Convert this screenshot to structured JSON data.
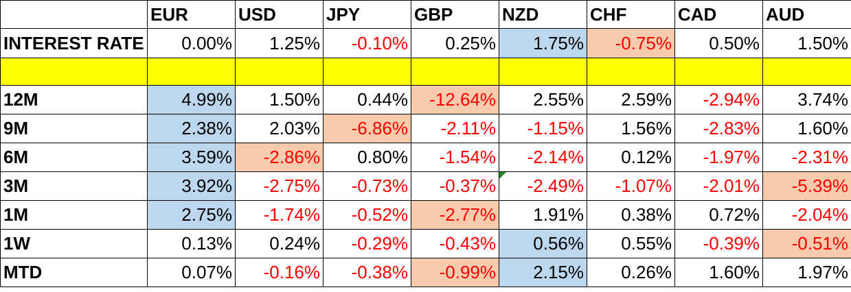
{
  "headers": [
    "",
    "EUR",
    "USD",
    "JPY",
    "GBP",
    "NZD",
    "CHF",
    "CAD",
    "AUD"
  ],
  "rows": [
    {
      "label": "INTEREST RATE",
      "values": [
        "0.00%",
        "1.25%",
        "-0.10%",
        "0.25%",
        "1.75%",
        "-0.75%",
        "0.50%",
        "1.50%"
      ]
    },
    {
      "label": "",
      "values": [
        "",
        "",
        "",
        "",
        "",
        "",
        "",
        ""
      ]
    },
    {
      "label": "12M",
      "values": [
        "4.99%",
        "1.50%",
        "0.44%",
        "-12.64%",
        "2.55%",
        "2.59%",
        "-2.94%",
        "3.74%"
      ]
    },
    {
      "label": "9M",
      "values": [
        "2.38%",
        "2.03%",
        "-6.86%",
        "-2.11%",
        "-1.15%",
        "1.56%",
        "-2.83%",
        "1.60%"
      ]
    },
    {
      "label": "6M",
      "values": [
        "3.59%",
        "-2.86%",
        "0.80%",
        "-1.54%",
        "-2.14%",
        "0.12%",
        "-1.97%",
        "-2.31%"
      ]
    },
    {
      "label": "3M",
      "values": [
        "3.92%",
        "-2.75%",
        "-0.73%",
        "-0.37%",
        "-2.49%",
        "-1.07%",
        "-2.01%",
        "-5.39%"
      ]
    },
    {
      "label": "1M",
      "values": [
        "2.75%",
        "-1.74%",
        "-0.52%",
        "-2.77%",
        "1.91%",
        "0.38%",
        "0.72%",
        "-2.04%"
      ]
    },
    {
      "label": "1W",
      "values": [
        "0.13%",
        "0.24%",
        "-0.29%",
        "-0.43%",
        "0.56%",
        "0.55%",
        "-0.39%",
        "-0.51%"
      ]
    },
    {
      "label": "MTD",
      "values": [
        "0.07%",
        "-0.16%",
        "-0.38%",
        "-0.99%",
        "2.15%",
        "0.26%",
        "1.60%",
        "1.97%"
      ]
    }
  ],
  "colors": {
    "best": "#bdd7ee",
    "worst": "#f8cbad",
    "negative_text": "#ff0000",
    "separator_row": "#ffff00"
  }
}
